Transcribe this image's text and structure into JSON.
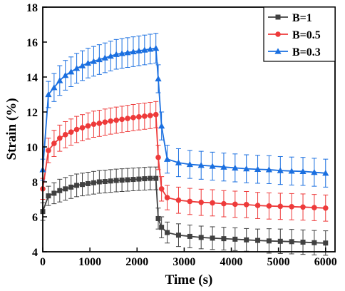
{
  "chart_data": {
    "type": "line",
    "title": "",
    "xlabel": "Time (s)",
    "ylabel": "Strain (%)",
    "xlim": [
      0,
      6200
    ],
    "ylim": [
      4,
      18
    ],
    "xticks": [
      "0",
      "1000",
      "2000",
      "3000",
      "4000",
      "5000",
      "6000"
    ],
    "yticks": [
      "4",
      "6",
      "8",
      "10",
      "12",
      "14",
      "16",
      "18"
    ],
    "legend_position": "top-right",
    "grid": false,
    "series": [
      {
        "name": "B=1",
        "color": "#404040",
        "marker": "square",
        "x": [
          0,
          120,
          240,
          360,
          480,
          600,
          720,
          840,
          960,
          1080,
          1200,
          1320,
          1440,
          1560,
          1680,
          1800,
          1920,
          2040,
          2160,
          2280,
          2400,
          2450,
          2520,
          2640,
          2880,
          3120,
          3360,
          3600,
          3840,
          4080,
          4320,
          4560,
          4800,
          5040,
          5280,
          5520,
          5760,
          6000
        ],
        "y": [
          6.3,
          7.2,
          7.35,
          7.5,
          7.6,
          7.7,
          7.8,
          7.85,
          7.9,
          7.95,
          8.0,
          8.02,
          8.05,
          8.08,
          8.1,
          8.12,
          8.14,
          8.16,
          8.18,
          8.2,
          8.2,
          5.9,
          5.4,
          5.1,
          4.95,
          4.88,
          4.82,
          4.78,
          4.75,
          4.72,
          4.68,
          4.65,
          4.62,
          4.6,
          4.58,
          4.55,
          4.52,
          4.5
        ],
        "err": [
          0.5,
          0.55,
          0.6,
          0.65,
          0.65,
          0.65,
          0.65,
          0.65,
          0.65,
          0.65,
          0.65,
          0.65,
          0.65,
          0.65,
          0.65,
          0.65,
          0.65,
          0.65,
          0.65,
          0.65,
          0.65,
          0.6,
          0.6,
          0.6,
          0.65,
          0.65,
          0.65,
          0.65,
          0.65,
          0.65,
          0.65,
          0.65,
          0.7,
          0.7,
          0.7,
          0.7,
          0.7,
          0.7
        ]
      },
      {
        "name": "B=0.5",
        "color": "#ee3a3a",
        "marker": "circle",
        "x": [
          0,
          120,
          240,
          360,
          480,
          600,
          720,
          840,
          960,
          1080,
          1200,
          1320,
          1440,
          1560,
          1680,
          1800,
          1920,
          2040,
          2160,
          2280,
          2400,
          2450,
          2520,
          2640,
          2880,
          3120,
          3360,
          3600,
          3840,
          4080,
          4320,
          4560,
          4800,
          5040,
          5280,
          5520,
          5760,
          6000
        ],
        "y": [
          7.6,
          9.8,
          10.2,
          10.5,
          10.7,
          10.85,
          11.0,
          11.1,
          11.2,
          11.3,
          11.35,
          11.42,
          11.48,
          11.53,
          11.58,
          11.63,
          11.68,
          11.72,
          11.76,
          11.8,
          11.85,
          9.4,
          7.6,
          7.1,
          6.95,
          6.88,
          6.83,
          6.8,
          6.75,
          6.72,
          6.7,
          6.65,
          6.62,
          6.6,
          6.58,
          6.56,
          6.53,
          6.5
        ],
        "err": [
          0.6,
          0.7,
          0.75,
          0.75,
          0.75,
          0.75,
          0.75,
          0.75,
          0.75,
          0.75,
          0.75,
          0.75,
          0.75,
          0.75,
          0.75,
          0.75,
          0.75,
          0.75,
          0.75,
          0.75,
          0.75,
          0.7,
          0.7,
          0.7,
          0.75,
          0.75,
          0.75,
          0.75,
          0.75,
          0.75,
          0.75,
          0.75,
          0.75,
          0.75,
          0.75,
          0.75,
          0.75,
          0.75
        ]
      },
      {
        "name": "B=0.3",
        "color": "#1a6fe0",
        "marker": "triangle",
        "x": [
          0,
          120,
          240,
          360,
          480,
          600,
          720,
          840,
          960,
          1080,
          1200,
          1320,
          1440,
          1560,
          1680,
          1800,
          1920,
          2040,
          2160,
          2280,
          2400,
          2450,
          2520,
          2640,
          2880,
          3120,
          3360,
          3600,
          3840,
          4080,
          4320,
          4560,
          4800,
          5040,
          5280,
          5520,
          5760,
          6000
        ],
        "y": [
          8.7,
          13.0,
          13.4,
          13.8,
          14.1,
          14.3,
          14.5,
          14.65,
          14.8,
          14.9,
          15.0,
          15.1,
          15.2,
          15.3,
          15.35,
          15.4,
          15.45,
          15.5,
          15.55,
          15.6,
          15.65,
          13.9,
          11.2,
          9.3,
          9.1,
          9.0,
          8.95,
          8.9,
          8.85,
          8.8,
          8.75,
          8.72,
          8.7,
          8.65,
          8.62,
          8.6,
          8.55,
          8.5
        ],
        "err": [
          0.6,
          0.75,
          0.8,
          0.85,
          0.85,
          0.85,
          0.85,
          0.85,
          0.85,
          0.85,
          0.85,
          0.85,
          0.85,
          0.85,
          0.85,
          0.85,
          0.85,
          0.85,
          0.85,
          0.85,
          0.85,
          0.8,
          0.8,
          0.8,
          0.8,
          0.8,
          0.8,
          0.8,
          0.8,
          0.8,
          0.8,
          0.8,
          0.8,
          0.8,
          0.8,
          0.8,
          0.8,
          0.8
        ]
      }
    ]
  }
}
